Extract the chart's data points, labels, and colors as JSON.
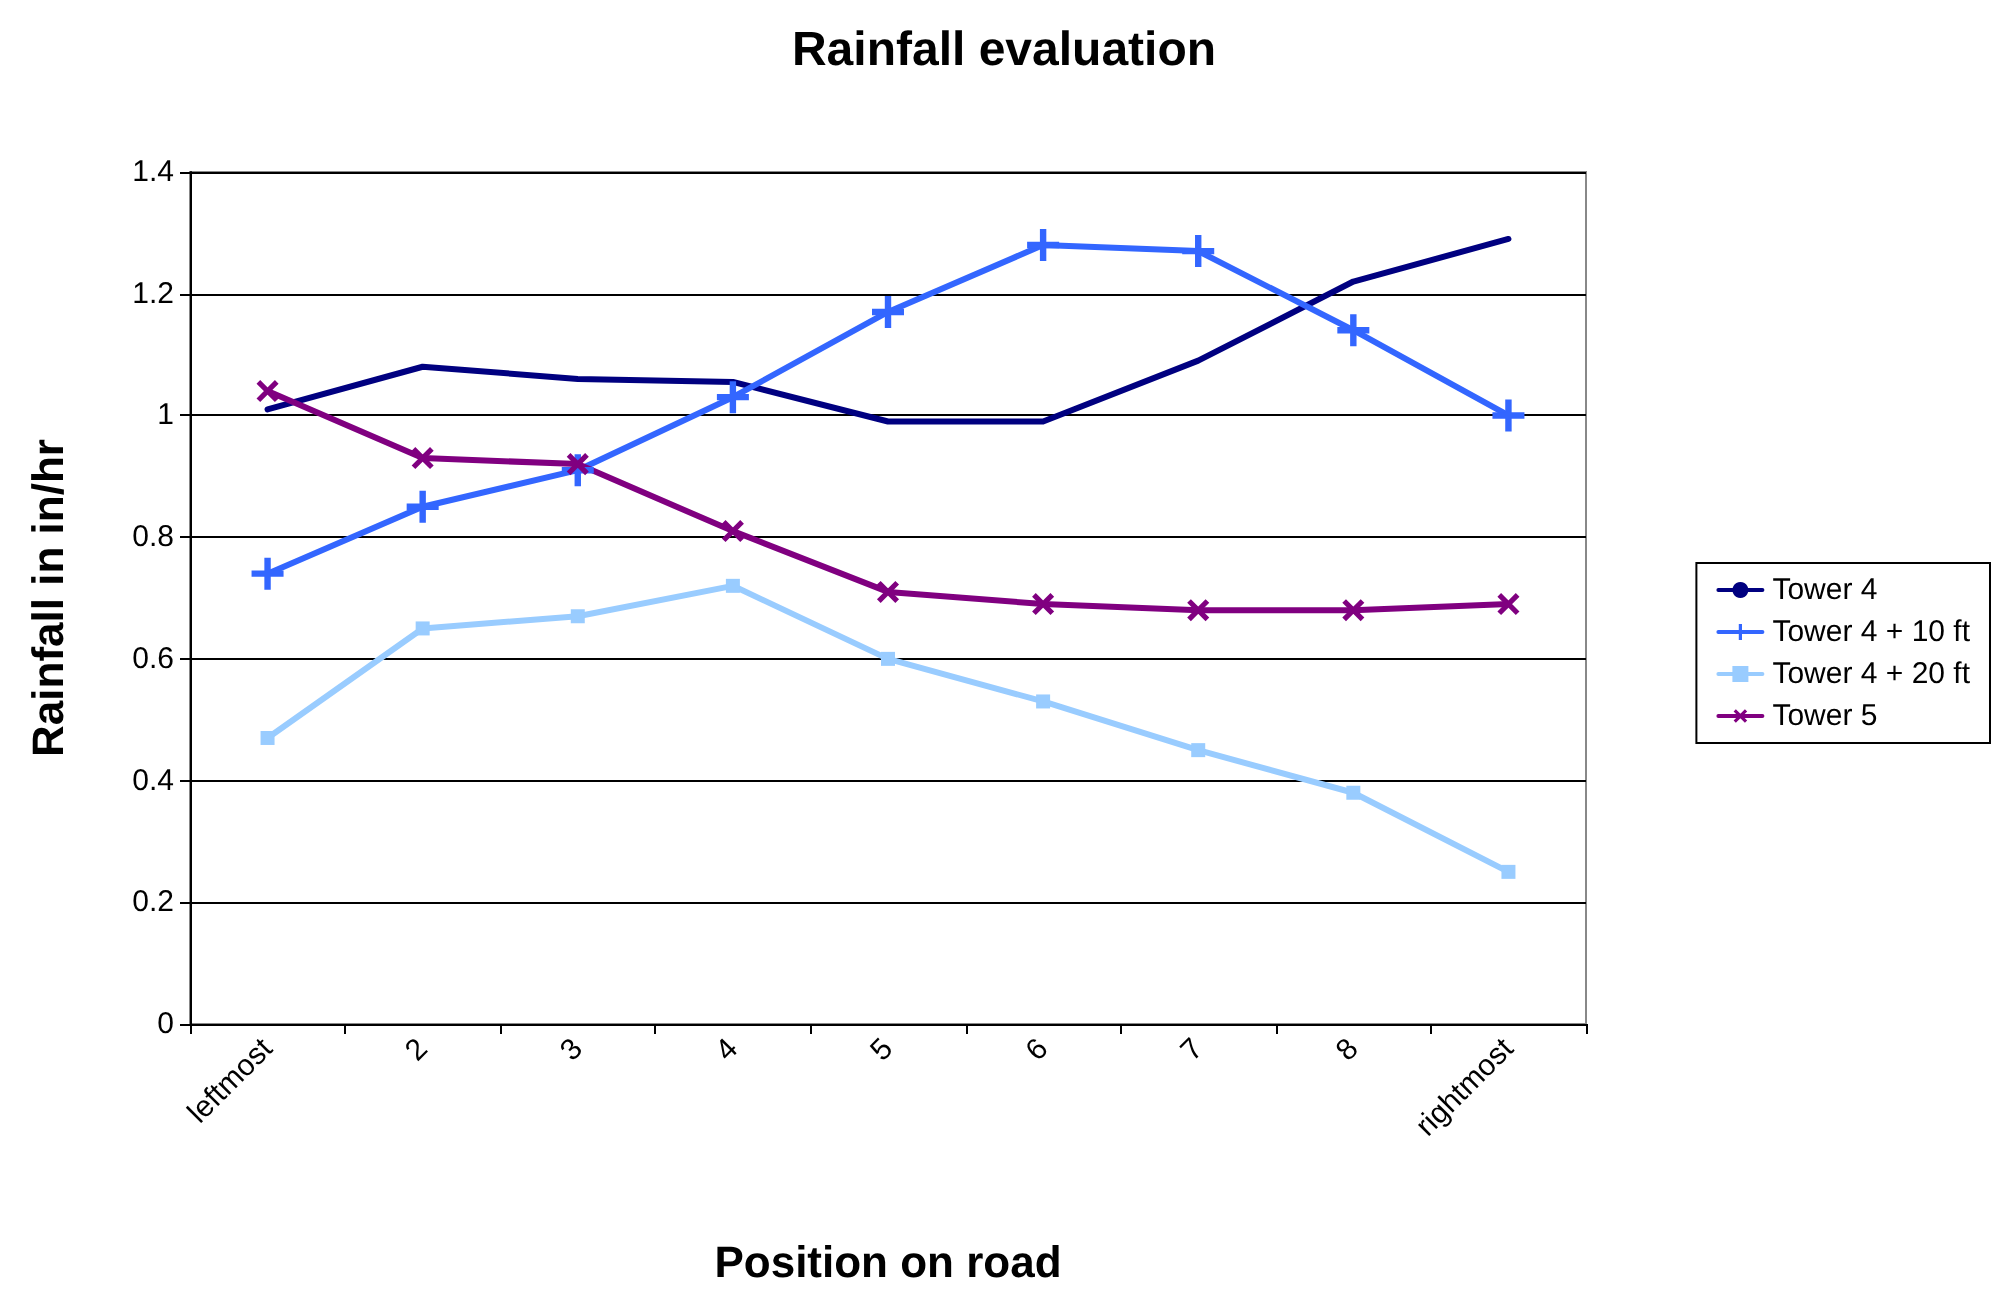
{
  "chart_data": {
    "type": "line",
    "title": "Rainfall evaluation",
    "xlabel": "Position on road",
    "ylabel": "Rainfall in in/hr",
    "categories": [
      "leftmost",
      "2",
      "3",
      "4",
      "5",
      "6",
      "7",
      "8",
      "rightmost"
    ],
    "series": [
      {
        "name": "Tower 4",
        "color": "#000080",
        "marker": "none",
        "values": [
          1.01,
          1.08,
          1.06,
          1.055,
          0.99,
          0.99,
          1.09,
          1.22,
          1.29
        ]
      },
      {
        "name": "Tower 4 + 10 ft",
        "color": "#3366ff",
        "marker": "cross",
        "values": [
          0.74,
          0.85,
          0.91,
          1.03,
          1.17,
          1.28,
          1.27,
          1.14,
          1.0
        ]
      },
      {
        "name": "Tower 4 + 20 ft",
        "color": "#99ccff",
        "marker": "square",
        "values": [
          0.47,
          0.65,
          0.67,
          0.72,
          0.6,
          0.53,
          0.45,
          0.38,
          0.25
        ]
      },
      {
        "name": "Tower 5",
        "color": "#800080",
        "marker": "x",
        "values": [
          1.04,
          0.93,
          0.92,
          0.81,
          0.71,
          0.69,
          0.68,
          0.68,
          0.69
        ]
      }
    ],
    "ylim": [
      0,
      1.4
    ],
    "yticks": [
      0,
      0.2,
      0.4,
      0.6,
      0.8,
      1,
      1.2,
      1.4
    ],
    "grid": "y",
    "legend": "right",
    "line_style": "solid"
  }
}
